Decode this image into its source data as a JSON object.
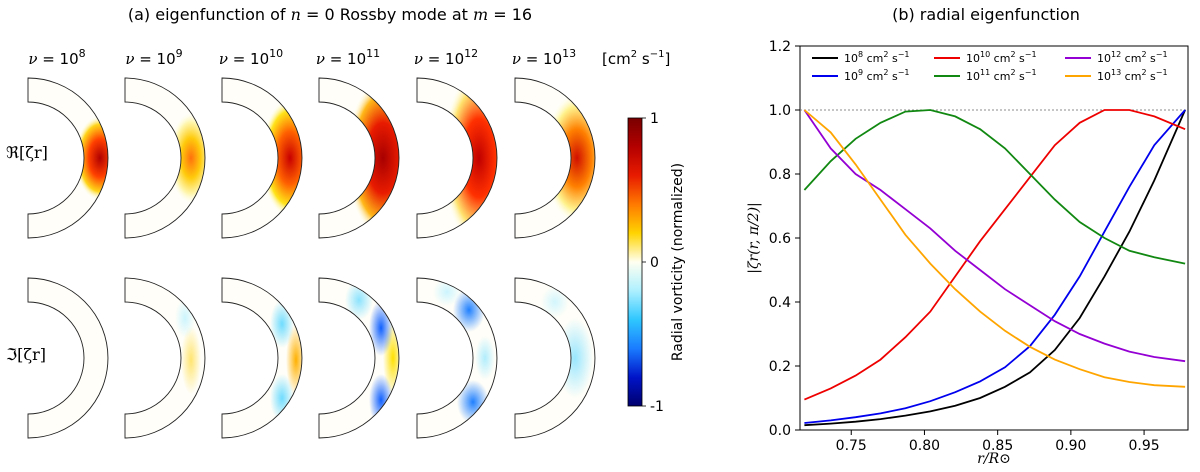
{
  "panel_a": {
    "title": "(a) eigenfunction of n = 0 Rossby mode at m = 16",
    "title_parts": [
      "(a) eigenfunction of ",
      "n",
      " = 0 Rossby mode at ",
      "m",
      " = 16"
    ],
    "nu_values": [
      "10^8",
      "10^9",
      "10^10",
      "10^11",
      "10^12",
      "10^13"
    ],
    "nu_prefix": "ν = 10",
    "nu_exponents": [
      "8",
      "9",
      "10",
      "11",
      "12",
      "13"
    ],
    "units": "[cm² s⁻¹]",
    "units_parts": [
      "[cm",
      "2",
      " s",
      "−1",
      "]"
    ],
    "row_labels": [
      "ℜ[ζr]",
      "ℑ[ζr]"
    ],
    "colorbar": {
      "label": "Radial vorticity (normalized)",
      "ticks": [
        "1",
        "0",
        "-1"
      ],
      "colors": [
        "#7a0000",
        "#b40000",
        "#e81b00",
        "#ff7a00",
        "#ffd400",
        "#fffff0",
        "#aef0ff",
        "#2fc7ff",
        "#1a7cff",
        "#0014c8",
        "#00006e"
      ]
    }
  },
  "chart_data": {
    "type": "line",
    "title": "(b) radial eigenfunction",
    "xlabel": "r/R⊙",
    "ylabel": "|ζr(r, π/2)|",
    "xlim": [
      0.715,
      0.98
    ],
    "ylim": [
      0.0,
      1.2
    ],
    "xticks": [
      "0.75",
      "0.80",
      "0.85",
      "0.90",
      "0.95"
    ],
    "xtick_values": [
      0.75,
      0.8,
      0.85,
      0.9,
      0.95
    ],
    "yticks": [
      "0.0",
      "0.2",
      "0.4",
      "0.6",
      "0.8",
      "1.0",
      "1.2"
    ],
    "ytick_values": [
      0.0,
      0.2,
      0.4,
      0.6,
      0.8,
      1.0,
      1.2
    ],
    "reference_line": 1.0,
    "legend_position": "top",
    "x": [
      0.718,
      0.736,
      0.753,
      0.77,
      0.787,
      0.804,
      0.821,
      0.838,
      0.855,
      0.872,
      0.889,
      0.906,
      0.923,
      0.94,
      0.957,
      0.978
    ],
    "series": [
      {
        "name": "10^8 cm² s⁻¹",
        "label_base": "10",
        "label_exp": "8",
        "color": "#000000",
        "values": [
          0.015,
          0.02,
          0.026,
          0.034,
          0.045,
          0.058,
          0.076,
          0.1,
          0.135,
          0.18,
          0.25,
          0.35,
          0.48,
          0.62,
          0.78,
          1.0
        ]
      },
      {
        "name": "10^9 cm² s⁻¹",
        "label_base": "10",
        "label_exp": "9",
        "color": "#0000ee",
        "values": [
          0.022,
          0.03,
          0.04,
          0.052,
          0.068,
          0.09,
          0.118,
          0.152,
          0.196,
          0.262,
          0.36,
          0.48,
          0.62,
          0.76,
          0.89,
          1.0
        ]
      },
      {
        "name": "10^10 cm² s⁻¹",
        "label_base": "10",
        "label_exp": "10",
        "color": "#ee0000",
        "values": [
          0.095,
          0.13,
          0.17,
          0.22,
          0.29,
          0.37,
          0.48,
          0.59,
          0.69,
          0.79,
          0.89,
          0.96,
          1.0,
          1.0,
          0.98,
          0.94
        ]
      },
      {
        "name": "10^11 cm² s⁻¹",
        "label_base": "10",
        "label_exp": "11",
        "color": "#118811",
        "values": [
          0.75,
          0.84,
          0.91,
          0.96,
          0.995,
          1.0,
          0.98,
          0.94,
          0.88,
          0.8,
          0.72,
          0.65,
          0.6,
          0.56,
          0.54,
          0.52
        ]
      },
      {
        "name": "10^12 cm² s⁻¹",
        "label_base": "10",
        "label_exp": "12",
        "color": "#9400d3",
        "values": [
          1.0,
          0.88,
          0.8,
          0.75,
          0.69,
          0.63,
          0.56,
          0.5,
          0.44,
          0.39,
          0.34,
          0.3,
          0.27,
          0.245,
          0.228,
          0.215
        ]
      },
      {
        "name": "10^13 cm² s⁻¹",
        "label_base": "10",
        "label_exp": "13",
        "color": "#ffa500",
        "values": [
          1.0,
          0.93,
          0.83,
          0.72,
          0.61,
          0.52,
          0.44,
          0.37,
          0.31,
          0.26,
          0.22,
          0.19,
          0.165,
          0.15,
          0.14,
          0.135
        ]
      }
    ]
  }
}
